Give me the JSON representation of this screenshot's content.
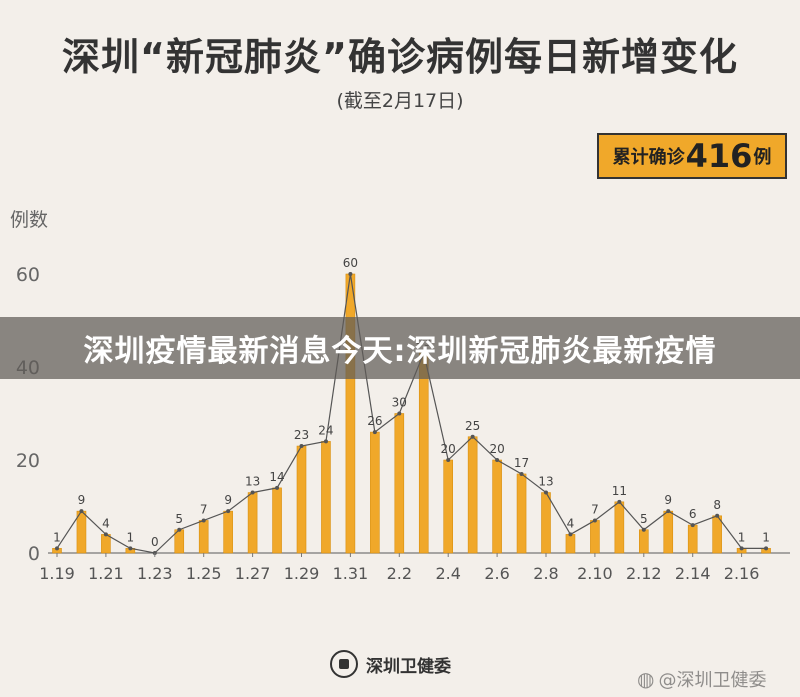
{
  "header": {
    "title": "深圳“新冠肺炎”确诊病例每日新增变化",
    "subtitle": "(截至2月17日)"
  },
  "total_box": {
    "prefix": "累计确诊",
    "number": "416",
    "suffix": "例"
  },
  "overlay_banner": {
    "text": "深圳疫情最新消息今天:深圳新冠肺炎最新疫情"
  },
  "footer": {
    "source": "深圳卫健委",
    "icon": "emblem-icon"
  },
  "watermark": {
    "text": "@深圳卫健委",
    "icon": "weibo-icon"
  },
  "colors": {
    "bar": "#f0a82a",
    "bar_edge": "#d98f0f",
    "line": "#555555",
    "total_box_bg": "#f0a82a",
    "background": "#f3efea"
  },
  "chart_data": {
    "type": "bar",
    "ylabel": "例数",
    "xlabel": "",
    "ylim": [
      0,
      60
    ],
    "yticks": [
      0,
      20,
      40,
      60
    ],
    "categories": [
      "1.19",
      "1.20",
      "1.21",
      "1.22",
      "1.23",
      "1.24",
      "1.25",
      "1.26",
      "1.27",
      "1.28",
      "1.29",
      "1.30",
      "1.31",
      "2.1",
      "2.2",
      "2.3",
      "2.4",
      "2.5",
      "2.6",
      "2.7",
      "2.8",
      "2.9",
      "2.10",
      "2.11",
      "2.12",
      "2.13",
      "2.14",
      "2.15",
      "2.16",
      "2.17"
    ],
    "x_tick_labels": [
      "1.19",
      "1.21",
      "1.23",
      "1.25",
      "1.27",
      "1.29",
      "1.31",
      "2.2",
      "2.4",
      "2.6",
      "2.8",
      "2.10",
      "2.12",
      "2.14",
      "2.16"
    ],
    "values": [
      1,
      9,
      4,
      1,
      0,
      5,
      7,
      9,
      13,
      14,
      23,
      24,
      60,
      26,
      30,
      43,
      20,
      25,
      20,
      17,
      13,
      4,
      7,
      11,
      5,
      9,
      6,
      8,
      1,
      1
    ],
    "overlay": "line connecting bar tops",
    "grid": false
  }
}
